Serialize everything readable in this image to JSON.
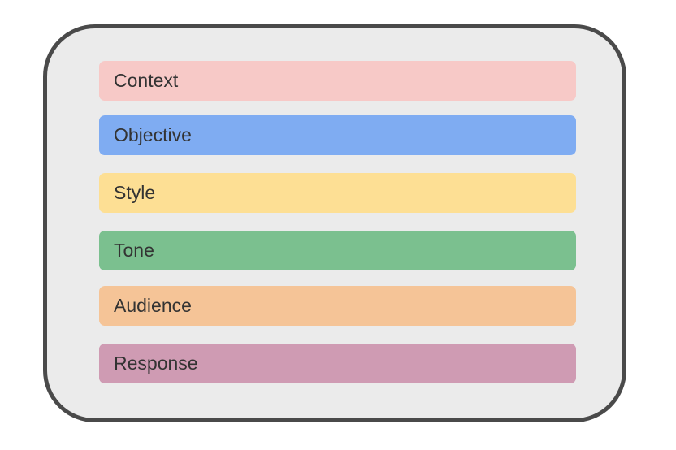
{
  "items": [
    {
      "label": "Context",
      "color": "#f7c9c7"
    },
    {
      "label": "Objective",
      "color": "#7facf2"
    },
    {
      "label": "Style",
      "color": "#fddf94"
    },
    {
      "label": "Tone",
      "color": "#7bc08f"
    },
    {
      "label": "Audience",
      "color": "#f5c497"
    },
    {
      "label": "Response",
      "color": "#cf9bb3"
    }
  ]
}
